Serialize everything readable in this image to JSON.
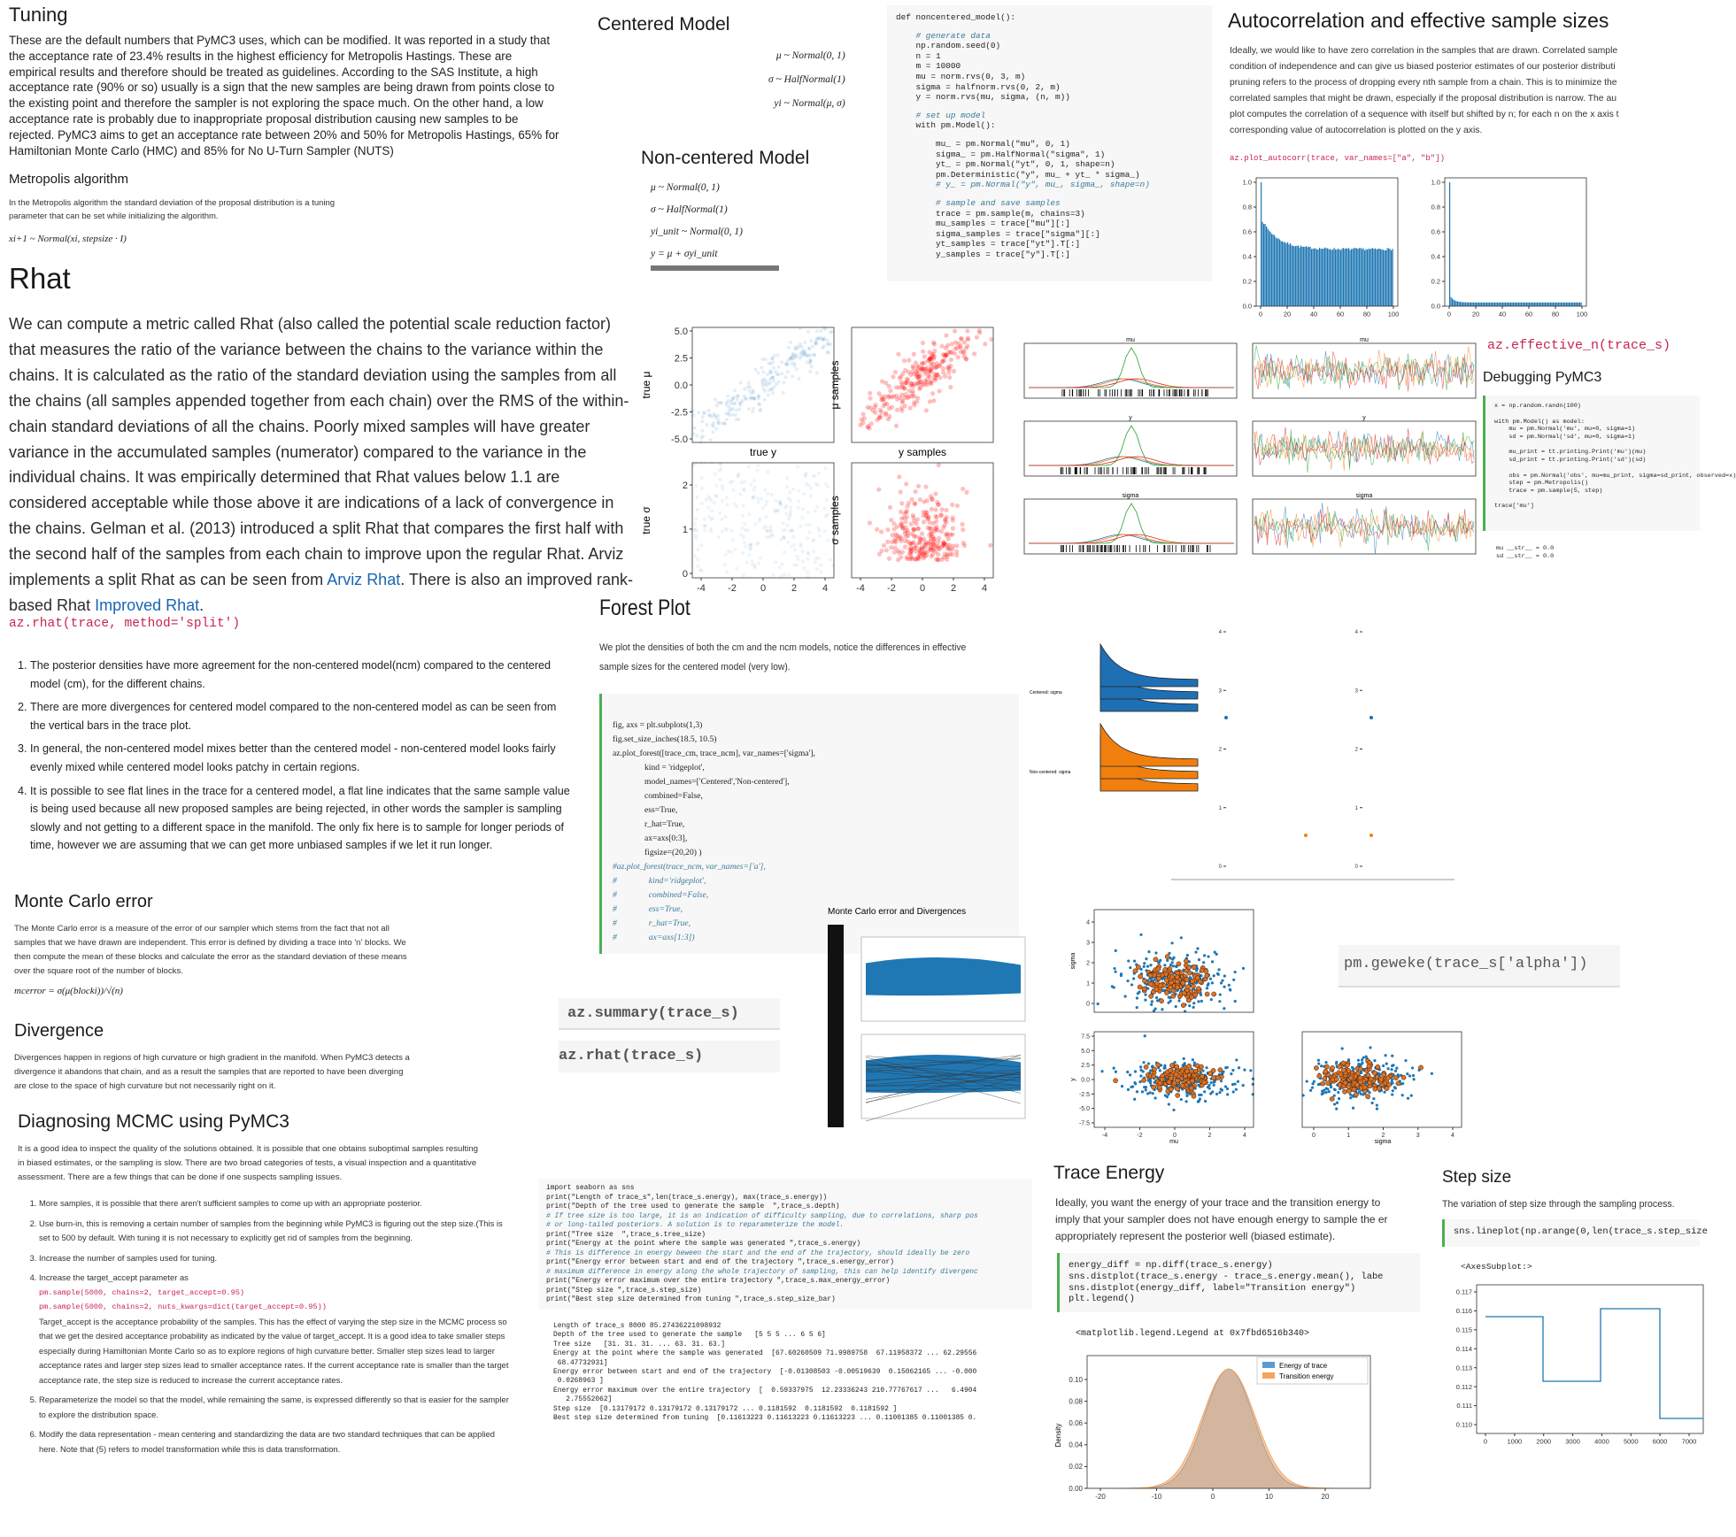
{
  "tuning": {
    "title": "Tuning",
    "text": "These are the default numbers that PyMC3 uses, which can be modified. It was reported in a study that the acceptance rate of 23.4% results in the highest efficiency for Metropolis Hastings. These are empirical results and therefore should be treated as guidelines. According to the SAS Institute, a high acceptance rate (90% or so) usually is a sign that the new samples are being drawn from points close to the existing point and therefore the sampler is not exploring the space much. On the other hand, a low acceptance rate is probably due to inappropriate proposal distribution causing new samples to be rejected. PyMC3 aims to get an acceptance rate between 20% and 50% for Metropolis Hastings, 65% for Hamiltonian Monte Carlo (HMC) and 85% for No U-Turn Sampler (NUTS)"
  },
  "metropolis": {
    "title": "Metropolis algorithm",
    "text": "In the Metropolis algorithm the standard deviation of the proposal distribution is a tuning parameter that can be set while initializing the algorithm.",
    "formula": "xi+1 ~ Normal(xi, stepsize · I)"
  },
  "rhat": {
    "title": "Rhat",
    "text": "We can compute a metric called Rhat (also called the potential scale reduction factor) that measures the ratio of the variance between the chains to the variance within the chains. It is calculated as the ratio of the standard deviation using the samples from all the chains (all samples appended together from each chain) over the RMS of the within-chain standard deviations of all the chains. Poorly mixed samples will have greater variance in the accumulated samples (numerator) compared to the variance in the individual chains. It was empirically determined that Rhat values below 1.1 are considered acceptable while those above it are indications of a lack of convergence in the chains. Gelman et al. (2013) introduced a split Rhat that compares the first half with the second half of the samples from each chain to improve upon the regular Rhat. Arviz implements a split Rhat as can be seen from ",
    "link1": "Arviz Rhat",
    "text2": ". There is also an improved rank-based Rhat ",
    "link2": "Improved Rhat",
    "text3": ".",
    "code": "az.rhat(trace, method='split')",
    "points": [
      "The posterior densities have more agreement for the non-centered model(ncm) compared to the centered model (cm), for the different chains.",
      "There are more divergences for centered model compared to the non-centered model as can be seen from the vertical bars in the trace plot.",
      "In general, the non-centered model mixes better than the centered model - non-centered model looks fairly evenly mixed while centered model looks patchy in certain regions.",
      "It is possible to see flat lines in the trace for a centered model, a flat line indicates that the same sample value is being used because all new proposed samples are being rejected, in other words the sampler is sampling slowly and not getting to a different space in the manifold. The only fix here is to sample for longer periods of time, however we are assuming that we can get more unbiased samples if we let it run longer."
    ]
  },
  "monte_carlo_error": {
    "title": "Monte Carlo error",
    "text": "The Monte Carlo error is a measure of the error of our sampler which stems from the fact that not all samples that we have drawn are independent. This error is defined by dividing a trace into 'n' blocks. We then compute the mean of these blocks and calculate the error as the standard deviation of these means over the square root of the number of blocks.",
    "formula": "mcerror = σ(μ(blocki))/√(n)"
  },
  "divergence": {
    "title": "Divergence",
    "text": "Divergences happen in regions of high curvature or high gradient in the manifold. When PyMC3 detects a divergence it abandons that chain, and as a result the samples that are reported to have been diverging are close to the space of high curvature but not necessarily right on it."
  },
  "diagnosing": {
    "title": "Diagnosing MCMC using PyMC3",
    "text": "It is a good idea to inspect the quality of the solutions obtained. It is possible that one obtains suboptimal samples resulting in biased estimates, or the sampling is slow. There are two broad categories of tests, a visual inspection and a quantitative assessment. There are a few things that can be done if one suspects sampling issues.",
    "steps": [
      "More samples, it is possible that there aren't sufficient samples to come up with an appropriate posterior.",
      "Use burn-in, this is removing a certain number of samples from the beginning while PyMC3 is figuring out the step size.(This is set to 500 by default. With tuning it is not necessary to explicitly get rid of samples from the beginning.",
      "Increase the number of samples used for tuning.",
      "Increase the target_accept parameter as",
      "Reparameterize the model so that the model, while remaining the same, is expressed differently so that is easier for the sampler to explore the distribution space.",
      "Modify the data representation - mean centering and standardizing the data are two standard techniques that can be applied here. Note that (5) refers to model transformation while this is data transformation."
    ],
    "step4_code": [
      "pm.sample(5000, chains=2, target_accept=0.95)",
      "pm.sample(5000, chains=2, nuts_kwargs=dict(target_accept=0.95))"
    ],
    "step4_detail": "Target_accept is the acceptance probability of the samples. This has the effect of varying the step size in the MCMC process so that we get the desired acceptance probability as indicated by the value of target_accept. It is a good idea to take smaller steps especially during Hamiltonian Monte Carlo so as to explore regions of high curvature better. Smaller step sizes lead to larger acceptance rates and larger step sizes lead to smaller acceptance rates. If the current acceptance rate is smaller than the target acceptance rate, the step size is reduced to increase the current acceptance rates."
  },
  "centered_model": {
    "title": "Centered Model",
    "formulas": [
      "μ ~ Normal(0, 1)",
      "σ ~ HalfNormal(1)",
      "yi ~ Normal(μ, σ)"
    ]
  },
  "noncentered_model": {
    "title": "Non-centered Model",
    "formulas": [
      "μ ~ Normal(0, 1)",
      "σ ~ HalfNormal(1)",
      "yi_unit ~ Normal(0, 1)",
      "y = μ + σyi_unit"
    ]
  },
  "noncentered_code": [
    [
      "def noncentered_model():"
    ],
    [
      "    # generate data",
      "    np.random.seed(0)",
      "    n = 1",
      "    m = 10000",
      "    mu = norm.rvs(0, 3, m)",
      "    sigma = halfnorm.rvs(0, 2, m)",
      "    y = norm.rvs(mu, sigma, (n, m))"
    ],
    [
      "    # set up model",
      "    with pm.Model():"
    ],
    [
      "        mu_ = pm.Normal(\"mu\", 0, 1)",
      "        sigma_ = pm.HalfNormal(\"sigma\", 1)",
      "        yt_ = pm.Normal(\"yt\", 0, 1, shape=n)",
      "        pm.Deterministic(\"y\", mu_ + yt_ * sigma_)",
      "        # y_ = pm.Normal(\"y\", mu_, sigma_, shape=n)"
    ],
    [
      "        # sample and save samples",
      "        trace = pm.sample(m, chains=3)",
      "        mu_samples = trace[\"mu\"][:]",
      "        sigma_samples = trace[\"sigma\"][:]",
      "        yt_samples = trace[\"yt\"].T[:]",
      "        y_samples = trace[\"y\"].T[:]"
    ]
  ],
  "autocorrelation": {
    "title": "Autocorrelation and effective sample sizes",
    "text_lines": [
      "Ideally, we would like to have zero correlation in the samples that are drawn. Correlated sample",
      "condition of independence and can give us biased posterior estimates of our posterior distributi",
      "pruning refers to the process of dropping every nth sample from a chain. This is to minimize the",
      "correlated samples that might be drawn, especially if the proposal distribution is narrow. The au",
      "plot computes the correlation of a sequence with itself but shifted by n; for each n on the x axis t",
      "corresponding value of autocorrelation is plotted on the y axis."
    ],
    "code": "az.plot_autocorr(trace, var_names=[\"a\", \"b\"])",
    "plot": {
      "yticks": [
        {
          "value": 0,
          "label": "0.0"
        },
        0.2,
        0.4,
        0.6,
        0.8,
        {
          "value": 1,
          "label": "1.0"
        }
      ],
      "xticks": [
        0,
        20,
        40,
        60,
        80,
        100
      ]
    }
  },
  "scatter_grid": {
    "labels": [
      "true μ",
      "μ samples",
      "true y",
      "y samples",
      "true σ",
      "σ samples"
    ],
    "yticks_top": [
      {
        "value": 5,
        "label": "5.0"
      },
      2.5,
      {
        "value": 0,
        "label": "0.0"
      },
      -2.5,
      {
        "value": -5,
        "label": "-5.0"
      }
    ],
    "yticks_bottom": [
      0,
      1,
      2
    ],
    "xticks": [
      -4,
      -2,
      0,
      2,
      4
    ]
  },
  "trace_plots": {
    "titles": [
      "mu",
      "mu",
      "y",
      "y",
      "sigma",
      "sigma"
    ]
  },
  "effective_n": {
    "code": "az.effective_n(trace_s)"
  },
  "debugging": {
    "title": "Debugging PyMC3",
    "code": [
      [
        "x = np.random.randn(100)"
      ],
      [
        "with pm.Model() as model:",
        "    mu = pm.Normal('mu', mu=0, sigma=1)",
        "    sd = pm.Normal('sd', mu=0, sigma=1)"
      ],
      [
        "    mu_print = tt.printing.Print('mu')(mu)",
        "    sd_print = tt.printing.Print('sd')(sd)"
      ],
      [
        "    obs = pm.Normal('obs', mu=mu_print, sigma=sd_print, observed=x)",
        "    step = pm.Metropolis()",
        "    trace = pm.sample(5, step)"
      ],
      [
        "trace['mu']"
      ]
    ],
    "output": [
      "mu __str__ = 0.0",
      "sd __str__ = 0.0"
    ]
  },
  "forest": {
    "title": "Forest Plot",
    "text": "We plot the densities of both the cm and the ncm models, notice the differences in effective sample sizes for the centered model (very low).",
    "code": [
      "fig, axs = plt.subplots(1,3)",
      "fig.set_size_inches(18.5, 10.5)",
      "az.plot_forest([trace_cm, trace_ncm], var_names=['sigma'],",
      "               kind = 'ridgeplot',",
      "               model_names=['Centered','Non-centered'],",
      "               combined=False,",
      "               ess=True,",
      "               r_hat=True,",
      "               ax=axs[0:3],",
      "               figsize=(20,20) )",
      "#az.plot_forest(trace_ncm, var_names=['a'],",
      "#               kind='ridgeplot',",
      "#               combined=False,",
      "#               ess=True,",
      "#               r_hat=True,",
      "#               ax=axs[1:3])"
    ]
  },
  "ridgeplot": {
    "labels": [
      "Centered: sigma",
      "Non-centered: sigma"
    ],
    "yticks": [
      0,
      1,
      2,
      3,
      4
    ]
  },
  "mc_divergence": {
    "title": "Monte Carlo error and Divergences"
  },
  "orange_scatter": {
    "ylabels": [
      "sigma",
      "y"
    ],
    "xlabels": [
      "mu",
      "sigma"
    ],
    "yticks_top": [
      0,
      1,
      2,
      3,
      4
    ],
    "yticks_bottom": [
      7.5,
      {
        "value": 5,
        "label": "5.0"
      },
      2.5,
      {
        "value": 0,
        "label": "0.0"
      },
      -2.5,
      {
        "value": -5,
        "label": "-5.0"
      },
      -7.5
    ],
    "xticks_left": [
      -4,
      -2,
      0,
      2,
      4
    ],
    "xticks_right": [
      0,
      1,
      2,
      3,
      4
    ]
  },
  "geweke": {
    "code": "pm.geweke(trace_s['alpha'])"
  },
  "summary": {
    "code1": "az.summary(trace_s)",
    "code2": "az.rhat(trace_s)"
  },
  "energy_code": {
    "code": [
      "import seaborn as sns",
      "print(\"Length of trace_s\",len(trace_s.energy), max(trace_s.energy))",
      "print(\"Depth of the tree used to generate the sample  \",trace_s.depth)",
      "# If tree size is too large, it is an indication of difficulty sampling, due to correlations, sharp pos",
      "# or long-tailed posteriors. A solution is to reparameterize the model.",
      "print(\"Tree size  \",trace_s.tree_size)",
      "print(\"Energy at the point where the sample was generated \",trace_s.energy)",
      "# This is difference in energy beween the start and the end of the trajectory, should ideally be zero",
      "print(\"Energy error between start and end of the trajectory \",trace_s.energy_error)",
      "# maximum difference in energy along the whole trajectory of sampling, this can help identify divergenc",
      "print(\"Energy error maximum over the entire trajectory \",trace_s.max_energy_error)",
      "print(\"Step size \",trace_s.step_size)",
      "print(\"Best step size determined from tuning \",trace_s.step_size_bar)"
    ],
    "output": [
      "Length of trace_s 8000 85.27436221098932",
      "Depth of the tree used to generate the sample   [5 5 5 ... 6 5 6]",
      "Tree size   [31. 31. 31. ... 63. 31. 63.]",
      "Energy at the point where the sample was generated  [67.60260509 71.9989758  67.11958372 ... 62.29556",
      " 68.47732931]",
      "Energy error between start and end of the trajectory  [-0.01308503 -0.00519639  0.15062165 ... -0.000",
      " 0.0268963 ]",
      "Energy error maximum over the entire trajectory  [  0.59337975  12.23336243 210.77767617 ...   6.4904",
      "   2.75552062]",
      "Step size  [0.13179172 0.13179172 0.13179172 ... 0.1181592  0.1181592  0.1181592 ]",
      "Best step size determined from tuning  [0.11613223 0.11613223 0.11613223 ... 0.11001385 0.11001385 0."
    ]
  },
  "trace_energy": {
    "title": "Trace Energy",
    "text_lines": [
      "Ideally, you want the energy of your trace and the transition energy to",
      "imply that your sampler does not have enough energy to sample the er",
      "appropriately represent the posterior well (biased estimate)."
    ],
    "code": [
      "energy_diff = np.diff(trace_s.energy)",
      "sns.distplot(trace_s.energy - trace_s.energy.mean(), labe",
      "sns.distplot(energy_diff, label=\"Transition energy\")",
      "plt.legend()"
    ],
    "output": "<matplotlib.legend.Legend at 0x7fbd6516b340>",
    "plot": {
      "ylabel": "Density",
      "legend": [
        "Energy of trace",
        "Transition energy"
      ],
      "yticks": [
        {
          "value": 0,
          "label": "0.00"
        },
        {
          "value": 0.02,
          "label": "0.02"
        },
        {
          "value": 0.04,
          "label": "0.04"
        },
        {
          "value": 0.06,
          "label": "0.06"
        },
        {
          "value": 0.08,
          "label": "0.08"
        },
        {
          "value": 0.1,
          "label": "0.10"
        }
      ],
      "xticks": [
        -20,
        -10,
        0,
        10,
        20
      ]
    }
  },
  "step_size": {
    "title": "Step size",
    "text": "The variation of step size through the sampling process.",
    "code": "sns.lineplot(np.arange(0,len(trace_s.step_size",
    "output": "<AxesSubplot:>",
    "plot": {
      "yticks": [
        {
          "value": 0.11,
          "label": "0.110"
        },
        0.111,
        0.112,
        0.113,
        0.114,
        0.115,
        0.116,
        0.117
      ],
      "xticks": [
        0,
        1000,
        2000,
        3000,
        4000,
        5000,
        6000,
        7000
      ]
    }
  }
}
